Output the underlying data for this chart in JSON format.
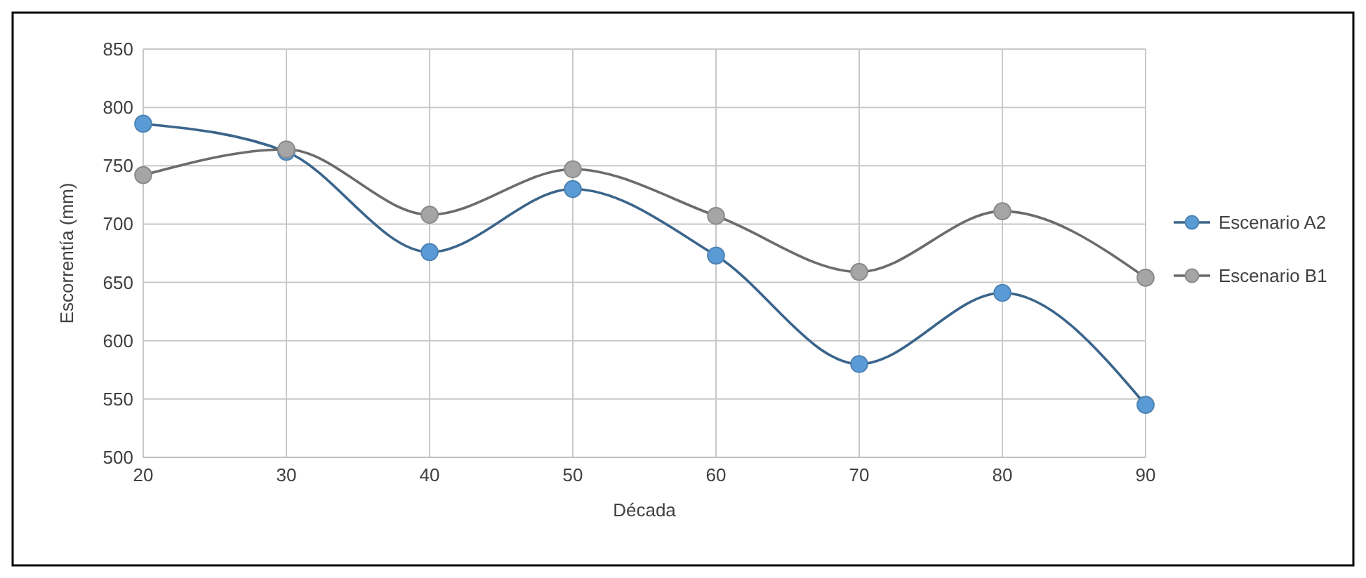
{
  "chart_data": {
    "type": "line",
    "xlabel": "Década",
    "ylabel": "Escorrentía (mm)",
    "x": [
      20,
      30,
      40,
      50,
      60,
      70,
      80,
      90
    ],
    "xlim": [
      20,
      90
    ],
    "xticks": [
      20,
      30,
      40,
      50,
      60,
      70,
      80,
      90
    ],
    "ylim": [
      500,
      850
    ],
    "yticks": [
      500,
      550,
      600,
      650,
      700,
      750,
      800,
      850
    ],
    "grid": true,
    "legend": "right",
    "marker": "circle",
    "line_style": "solid",
    "series": [
      {
        "name": "Escenario A2",
        "color": "#5b9bd5",
        "values": [
          786,
          762,
          676,
          730,
          673,
          580,
          641,
          545
        ]
      },
      {
        "name": "Escenario B1",
        "color": "#a5a5a5",
        "values": [
          742,
          764,
          708,
          747,
          707,
          659,
          711,
          654
        ]
      }
    ]
  }
}
